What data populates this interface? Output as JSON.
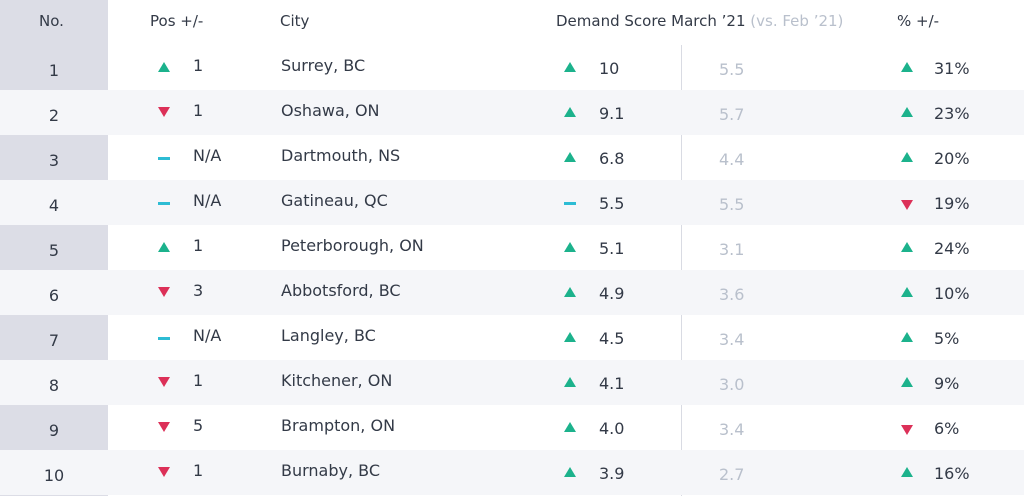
{
  "header": {
    "no": "No.",
    "pos": "Pos +/-",
    "city": "City",
    "demand": "Demand Score March ’21",
    "demand_vs": "(vs. Feb ’21)",
    "pct": "% +/-"
  },
  "colors": {
    "up": "#1cb28c",
    "down": "#dc3058",
    "same": "#2dbcd4"
  },
  "rows": [
    {
      "no": "1",
      "pos_dir": "up",
      "pos": "1",
      "city": "Surrey, BC",
      "demand_dir": "up",
      "demand": "10",
      "feb": "5.5",
      "pct_dir": "up",
      "pct": "31%"
    },
    {
      "no": "2",
      "pos_dir": "down",
      "pos": "1",
      "city": "Oshawa, ON",
      "demand_dir": "up",
      "demand": "9.1",
      "feb": "5.7",
      "pct_dir": "up",
      "pct": "23%"
    },
    {
      "no": "3",
      "pos_dir": "same",
      "pos": "N/A",
      "city": "Dartmouth, NS",
      "demand_dir": "up",
      "demand": "6.8",
      "feb": "4.4",
      "pct_dir": "up",
      "pct": "20%"
    },
    {
      "no": "4",
      "pos_dir": "same",
      "pos": "N/A",
      "city": "Gatineau, QC",
      "demand_dir": "same",
      "demand": "5.5",
      "feb": "5.5",
      "pct_dir": "down",
      "pct": "19%"
    },
    {
      "no": "5",
      "pos_dir": "up",
      "pos": "1",
      "city": "Peterborough, ON",
      "demand_dir": "up",
      "demand": "5.1",
      "feb": "3.1",
      "pct_dir": "up",
      "pct": "24%"
    },
    {
      "no": "6",
      "pos_dir": "down",
      "pos": "3",
      "city": "Abbotsford, BC",
      "demand_dir": "up",
      "demand": "4.9",
      "feb": "3.6",
      "pct_dir": "up",
      "pct": "10%"
    },
    {
      "no": "7",
      "pos_dir": "same",
      "pos": "N/A",
      "city": "Langley, BC",
      "demand_dir": "up",
      "demand": "4.5",
      "feb": "3.4",
      "pct_dir": "up",
      "pct": "5%"
    },
    {
      "no": "8",
      "pos_dir": "down",
      "pos": "1",
      "city": "Kitchener, ON",
      "demand_dir": "up",
      "demand": "4.1",
      "feb": "3.0",
      "pct_dir": "up",
      "pct": "9%"
    },
    {
      "no": "9",
      "pos_dir": "down",
      "pos": "5",
      "city": "Brampton, ON",
      "demand_dir": "up",
      "demand": "4.0",
      "feb": "3.4",
      "pct_dir": "down",
      "pct": "6%"
    },
    {
      "no": "10",
      "pos_dir": "down",
      "pos": "1",
      "city": "Burnaby, BC",
      "demand_dir": "up",
      "demand": "3.9",
      "feb": "2.7",
      "pct_dir": "up",
      "pct": "16%"
    }
  ]
}
